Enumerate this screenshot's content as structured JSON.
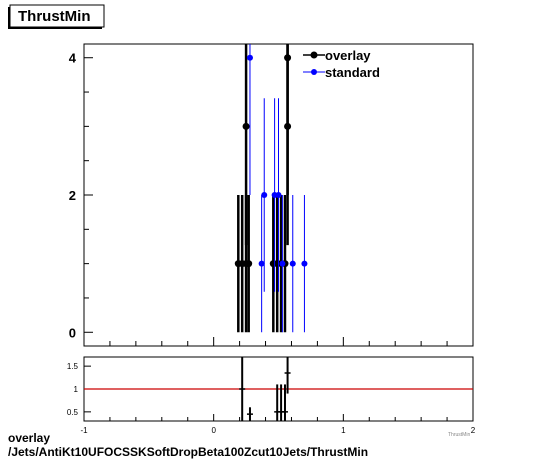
{
  "chart_data": [
    {
      "type": "scatter",
      "title": "ThrustMin",
      "xlim": [
        -1,
        2
      ],
      "ylim": [
        -0.2,
        4.2
      ],
      "y_ticks": [
        0,
        2,
        4
      ],
      "grid": false,
      "legend_position": "top-right",
      "series": [
        {
          "name": "overlay",
          "color": "#000000",
          "points": [
            {
              "x": 0.19,
              "y": 1,
              "ylo": 0,
              "yhi": 2
            },
            {
              "x": 0.22,
              "y": 1,
              "ylo": 0,
              "yhi": 2
            },
            {
              "x": 0.25,
              "y": 3,
              "ylo": 1.27,
              "yhi": 4.73
            },
            {
              "x": 0.25,
              "y": 1,
              "ylo": 0,
              "yhi": 2
            },
            {
              "x": 0.27,
              "y": 1,
              "ylo": 0,
              "yhi": 2
            },
            {
              "x": 0.46,
              "y": 1,
              "ylo": 0,
              "yhi": 2
            },
            {
              "x": 0.49,
              "y": 1,
              "ylo": 0,
              "yhi": 2
            },
            {
              "x": 0.52,
              "y": 1,
              "ylo": 0,
              "yhi": 2
            },
            {
              "x": 0.55,
              "y": 1,
              "ylo": 0,
              "yhi": 2
            },
            {
              "x": 0.57,
              "y": 4,
              "ylo": 2,
              "yhi": 6
            },
            {
              "x": 0.57,
              "y": 3,
              "ylo": 1.27,
              "yhi": 4.73
            }
          ]
        },
        {
          "name": "standard",
          "color": "#0000ff",
          "points": [
            {
              "x": 0.28,
              "y": 4,
              "ylo": 2,
              "yhi": 6
            },
            {
              "x": 0.37,
              "y": 1,
              "ylo": 0,
              "yhi": 2
            },
            {
              "x": 0.39,
              "y": 2,
              "ylo": 0.59,
              "yhi": 3.41
            },
            {
              "x": 0.47,
              "y": 2,
              "ylo": 0.59,
              "yhi": 3.41
            },
            {
              "x": 0.5,
              "y": 2,
              "ylo": 0.59,
              "yhi": 3.41
            },
            {
              "x": 0.53,
              "y": 1,
              "ylo": 0,
              "yhi": 2
            },
            {
              "x": 0.61,
              "y": 1,
              "ylo": 0,
              "yhi": 2
            },
            {
              "x": 0.7,
              "y": 1,
              "ylo": 0,
              "yhi": 2
            }
          ]
        }
      ]
    },
    {
      "type": "scatter",
      "title": "",
      "xlim": [
        -1,
        2
      ],
      "x_ticks": [
        -1,
        0,
        1,
        2
      ],
      "ylim": [
        0.3,
        1.7
      ],
      "y_ticks": [
        0.5,
        1,
        1.5
      ],
      "x_axis_label_partial": "ThrustMin",
      "reference_line": {
        "y": 1,
        "color": "#cc0000"
      },
      "ratio_points": [
        {
          "x": 0.22,
          "y": 1.0,
          "ylo": 0.3,
          "yhi": 1.7
        },
        {
          "x": 0.28,
          "y": 0.45,
          "ylo": 0.3,
          "yhi": 0.6
        },
        {
          "x": 0.49,
          "y": 0.5,
          "ylo": 0.3,
          "yhi": 1.1
        },
        {
          "x": 0.52,
          "y": 0.5,
          "ylo": 0.3,
          "yhi": 1.1
        },
        {
          "x": 0.55,
          "y": 0.5,
          "ylo": 0.3,
          "yhi": 1.1
        },
        {
          "x": 0.57,
          "y": 1.35,
          "ylo": 0.9,
          "yhi": 1.7
        }
      ]
    }
  ],
  "footer": {
    "line1": "overlay",
    "line2": "/Jets/AntiKt10UFOCSSKSoftDropBeta100Zcut10Jets/ThrustMin"
  }
}
